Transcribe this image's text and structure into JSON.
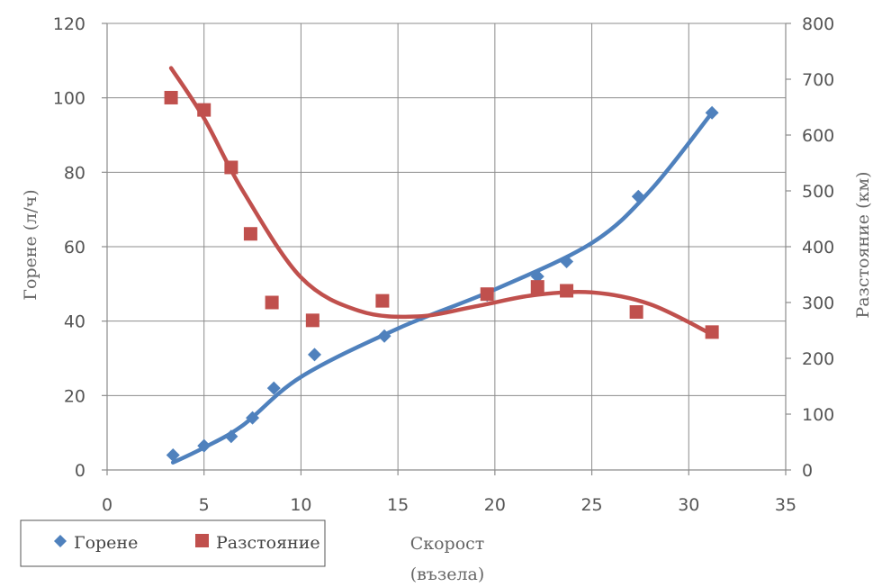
{
  "chart_data": {
    "type": "scatter",
    "xlabel_lines": [
      "Скорост",
      "(възела)"
    ],
    "ylabel_left": "Горене (л/ч)",
    "ylabel_right": "Разстояние (км)",
    "xlim": [
      0,
      35
    ],
    "ylim_left": [
      0,
      120
    ],
    "ylim_right": [
      0,
      800
    ],
    "x_ticks": [
      0,
      5,
      10,
      15,
      20,
      25,
      30,
      35
    ],
    "y_left_ticks": [
      0,
      20,
      40,
      60,
      80,
      100,
      120
    ],
    "y_right_ticks": [
      0,
      100,
      200,
      300,
      400,
      500,
      600,
      700,
      800
    ],
    "grid": true,
    "legend": {
      "position": "bottom-left"
    },
    "series": [
      {
        "name": "Горене",
        "axis": "left",
        "marker": "diamond",
        "color": "#4f81bd",
        "points": [
          [
            3.4,
            4
          ],
          [
            5.0,
            6.5
          ],
          [
            6.4,
            9
          ],
          [
            7.5,
            14
          ],
          [
            8.6,
            22
          ],
          [
            10.7,
            31
          ],
          [
            14.3,
            36
          ],
          [
            19.6,
            47
          ],
          [
            22.2,
            52
          ],
          [
            23.7,
            56
          ],
          [
            27.4,
            73.5
          ],
          [
            31.2,
            96
          ]
        ],
        "trendline": {
          "type": "polynomial",
          "x_range": [
            3.4,
            31.2
          ],
          "points": [
            [
              3.4,
              2
            ],
            [
              5,
              6
            ],
            [
              7,
              12
            ],
            [
              10,
              25
            ],
            [
              15,
              38
            ],
            [
              20,
              48.5
            ],
            [
              25,
              61
            ],
            [
              28,
              75
            ],
            [
              31.2,
              96
            ]
          ]
        }
      },
      {
        "name": "Разстояние",
        "axis": "right",
        "marker": "square",
        "color": "#c0504d",
        "points": [
          [
            3.3,
            667
          ],
          [
            5.0,
            645
          ],
          [
            6.4,
            542
          ],
          [
            7.4,
            423
          ],
          [
            8.5,
            300
          ],
          [
            10.6,
            268
          ],
          [
            14.2,
            303
          ],
          [
            19.6,
            315
          ],
          [
            22.2,
            328
          ],
          [
            23.7,
            321
          ],
          [
            27.3,
            283
          ],
          [
            31.2,
            247
          ]
        ],
        "trendline": {
          "type": "polynomial",
          "x_range": [
            3.3,
            31.2
          ],
          "points": [
            [
              3.3,
              720
            ],
            [
              5,
              630
            ],
            [
              7,
              500
            ],
            [
              10,
              345
            ],
            [
              13,
              285
            ],
            [
              16,
              275
            ],
            [
              19,
              293
            ],
            [
              22,
              313
            ],
            [
              25,
              318
            ],
            [
              28,
              297
            ],
            [
              31.2,
              243
            ]
          ]
        }
      }
    ]
  }
}
